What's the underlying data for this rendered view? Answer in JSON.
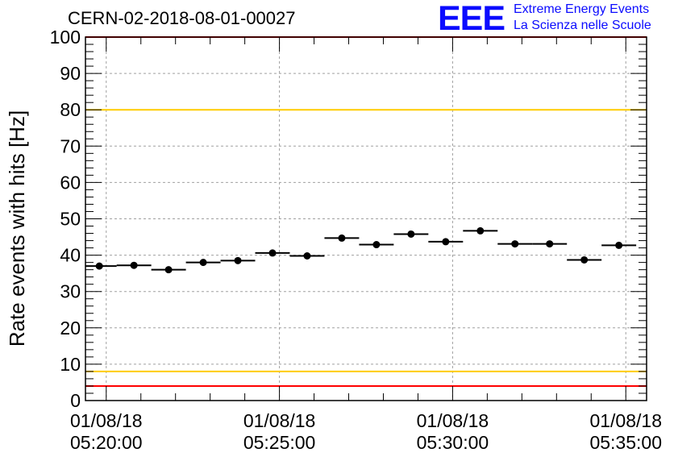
{
  "chart_title": "CERN-02-2018-08-01-00027",
  "logo": {
    "mark": "EEE",
    "line1": "Extreme Energy Events",
    "line2": "La Scienza nelle Scuole",
    "color": "#0b0bff"
  },
  "chart_data": {
    "type": "scatter",
    "title": "CERN-02-2018-08-01-00027",
    "xlabel": "",
    "ylabel": "Rate events with hits [Hz]",
    "x_unit": "minutes after 05:20:00 on 01/08/18",
    "xlim": [
      -0.6,
      15.6
    ],
    "ylim": [
      0,
      100
    ],
    "x_ticks": [
      {
        "x": 0,
        "date": "01/08/18",
        "time": "05:20:00"
      },
      {
        "x": 5,
        "date": "01/08/18",
        "time": "05:25:00"
      },
      {
        "x": 10,
        "date": "01/08/18",
        "time": "05:30:00"
      },
      {
        "x": 15,
        "date": "01/08/18",
        "time": "05:35:00"
      }
    ],
    "y_ticks": [
      0,
      10,
      20,
      30,
      40,
      50,
      60,
      70,
      80,
      90,
      100
    ],
    "grid": true,
    "bin_width_min": 1.0,
    "series": [
      {
        "x": [
          -0.2,
          0.8,
          1.8,
          2.8,
          3.8,
          4.8,
          5.8,
          6.8,
          7.8,
          8.8,
          9.8,
          10.8,
          11.8,
          12.8,
          13.8,
          14.8
        ],
        "y": [
          37,
          37.2,
          36,
          38,
          38.5,
          40.6,
          39.8,
          44.7,
          42.9,
          45.8,
          43.7,
          46.7,
          43.1,
          43.1,
          38.7,
          42.7
        ],
        "color": "#000000"
      }
    ],
    "reference_lines": [
      {
        "y": 100,
        "color": "#ff0000"
      },
      {
        "y": 80,
        "color": "#ffcc00"
      },
      {
        "y": 8,
        "color": "#ffcc00"
      },
      {
        "y": 4,
        "color": "#ff0000"
      }
    ]
  }
}
